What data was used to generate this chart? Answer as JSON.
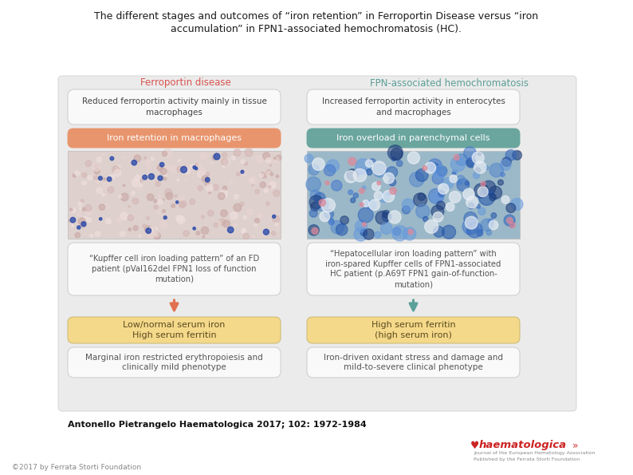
{
  "title_line1": "The different stages and outcomes of “iron retention” in Ferroportin Disease versus “iron",
  "title_line2": "accumulation” in FPN1-associated hemochromatosis (HC).",
  "bg_color": "#ffffff",
  "left_header": "Ferroportin disease",
  "right_header": "FPN-associated hemochromatosis",
  "left_header_color": "#d9534f",
  "right_header_color": "#5b9e96",
  "box1_left_text": "Reduced ferroportin activity mainly in tissue\nmacrophages",
  "box1_right_text": "Increased ferroportin activity in enterocytes\nand macrophages",
  "box2_left_text": "Iron retention in macrophages",
  "box2_right_text": "Iron overload in parenchymal cells",
  "box2_left_bg": "#e8956d",
  "box2_right_bg": "#6aa59e",
  "box3_left_text": "“Kupffer cell iron loading pattern” of an FD\npatient (pVal162del FPN1 loss of function\nmutation)",
  "box3_right_text": "“Hepatocellular iron loading pattern” with\niron-spared Kupffer cells of FPN1-associated\nHC patient (p.A69T FPN1 gain-of-function-\nmutation)",
  "arrow_left_color": "#e07050",
  "arrow_right_color": "#5ba09a",
  "box4_left_text": "Low/normal serum iron\nHigh serum ferritin",
  "box4_right_text": "High serum ferritin\n(high serum iron)",
  "box4_bg": "#f5d98a",
  "box5_left_text": "Marginal iron restricted erythropoiesis and\nclinically mild phenotype",
  "box5_right_text": "Iron-driven oxidant stress and damage and\nmild-to-severe clinical phenotype",
  "panel_bg": "#ebebeb",
  "panel_border": "#d0d0d0",
  "white_box_bg": "#f9f9f9",
  "white_box_border": "#cccccc",
  "citation": "Antonello Pietrangelo Haematologica 2017; 102: 1972-1984",
  "copyright": "©2017 by Ferrata Storti Foundation"
}
